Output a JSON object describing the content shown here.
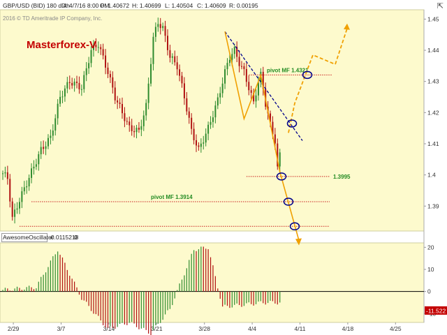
{
  "header": {
    "symbol": "GBP/USD (BID) 180 d 4h",
    "date": "D: 4/7/16 8:00 PM",
    "open": "O: 1.40672",
    "high": "H: 1.40699",
    "low": "L: 1.40504",
    "close": "C: 1.40609",
    "range": "R: 0.00195",
    "copyright": "2016 © TD Ameritrade IP Company, Inc."
  },
  "brand": "Masterforex-V",
  "indicator": {
    "name": "AwesomeOscillator",
    "value": "-0.0115218",
    "extra": "0"
  },
  "colors": {
    "up": "#2e8b2e",
    "down": "#b01010",
    "plot_bg": "#fdfacd",
    "pattern": "#f0a000",
    "trend": "#00008b",
    "level": "#c81e1e",
    "label_green": "#228b22",
    "osc_badge": "#c40000"
  },
  "chart_data": [
    {
      "type": "candlestick",
      "x_ticks": [
        "2/29",
        "3/7",
        "3/14",
        "3/21",
        "3/28",
        "4/4",
        "4/11",
        "4/18",
        "4/25"
      ],
      "y_ticks": [
        "1.45",
        "1.44",
        "1.43",
        "1.42",
        "1.41",
        "1.4",
        "1.39"
      ],
      "ylim": [
        1.382,
        1.453
      ],
      "candle_count": 117,
      "key_levels": [
        1.4403,
        1.421,
        1.4225,
        1.432,
        1.415,
        1.409,
        1.4005,
        1.393,
        1.4065
      ],
      "pivots": [
        {
          "label": "pivot MF 1.4321",
          "value": 1.4321
        },
        {
          "label": "1.3995",
          "value": 1.3995
        },
        {
          "label": "pivot MF 1.3914",
          "value": 1.3914
        },
        {
          "label": "",
          "value": 1.3835
        }
      ],
      "trendline": [
        [
          1.446,
          1.411
        ]
      ],
      "projection_up": [
        1.4135,
        1.423,
        1.4385,
        1.4355,
        1.447
      ],
      "projection_down": [
        1.401,
        1.383
      ]
    },
    {
      "type": "bar",
      "name": "AwesomeOscillator",
      "y_ticks": [
        "20",
        "10",
        "0",
        "-10"
      ],
      "ylim": [
        -14,
        22
      ],
      "last_value_label": "-11.522",
      "profile": [
        [
          -8,
          0
        ],
        [
          14,
          2
        ],
        [
          23,
          19
        ],
        [
          33,
          -3
        ],
        [
          44,
          -17
        ],
        [
          53,
          -14
        ],
        [
          62,
          -19
        ],
        [
          70,
          -8
        ],
        [
          80,
          19
        ],
        [
          86,
          20
        ],
        [
          92,
          -7
        ],
        [
          101,
          -6
        ],
        [
          109,
          -5
        ]
      ]
    }
  ]
}
